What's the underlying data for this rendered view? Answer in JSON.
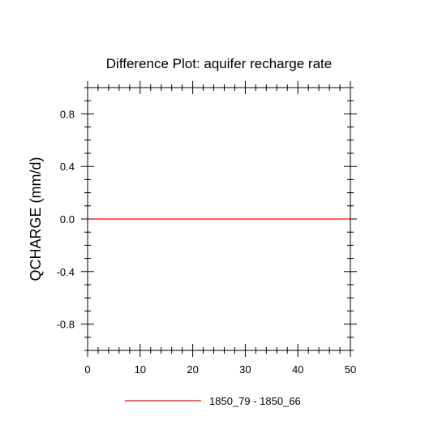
{
  "chart_data": {
    "type": "line",
    "title": "Difference Plot: aquifer recharge rate",
    "xlabel": "",
    "ylabel": "QCHARGE  (mm/d)",
    "xlim": [
      0,
      50
    ],
    "ylim": [
      -1,
      1
    ],
    "x_ticks": [
      0,
      10,
      20,
      30,
      40,
      50
    ],
    "x_tick_labels": [
      "0",
      "10",
      "20",
      "30",
      "40",
      "50"
    ],
    "y_ticks": [
      -0.8,
      -0.4,
      0.0,
      0.4,
      0.8
    ],
    "y_tick_labels": [
      "-0.8",
      "-0.4",
      "0.0",
      "0.4",
      "0.8"
    ],
    "grid": false,
    "legend_position": "bottom-center",
    "series": [
      {
        "name": "1850_79 - 1850_66",
        "color": "#ff0000",
        "x": [
          1,
          50
        ],
        "y": [
          0,
          0
        ]
      }
    ]
  }
}
